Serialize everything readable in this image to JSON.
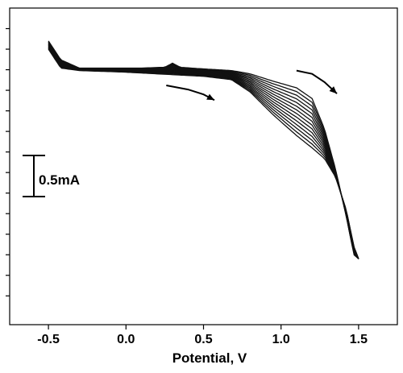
{
  "chart_data": {
    "type": "line",
    "title": "",
    "xlabel": "Potential, V",
    "ylabel": "",
    "xlim": [
      -0.75,
      1.75
    ],
    "ylim": [
      -3.1,
      0.75
    ],
    "x_ticks": [
      -0.5,
      0.0,
      0.5,
      1.0,
      1.5
    ],
    "x_tick_labels": [
      "-0.5",
      "0.0",
      "0.5",
      "1.0",
      "1.5"
    ],
    "y_ticks_mA": [
      0.5,
      0.25,
      0.0,
      -0.25,
      -0.5,
      -0.75,
      -1.0,
      -1.25,
      -1.5,
      -1.75,
      -2.0,
      -2.25,
      -2.5,
      -2.75
    ],
    "grid": false,
    "legend": "none",
    "scale_bar": {
      "label": "0.5mA",
      "value_mA": 0.5
    },
    "cycles": 14,
    "series": [
      {
        "role": "outer-envelope",
        "x": [
          -0.5,
          -0.42,
          -0.3,
          -0.1,
          0.1,
          0.25,
          0.3,
          0.35,
          0.5,
          0.68,
          0.8,
          0.95,
          1.1,
          1.2,
          1.28,
          1.35,
          1.42,
          1.47,
          1.5
        ],
        "y": [
          0.35,
          0.12,
          0.02,
          0.02,
          0.02,
          0.03,
          0.08,
          0.03,
          0.01,
          -0.01,
          -0.05,
          -0.14,
          -0.22,
          -0.35,
          -0.72,
          -1.2,
          -1.78,
          -2.25,
          -2.3
        ]
      },
      {
        "role": "inner-envelope",
        "x": [
          1.5,
          1.47,
          1.42,
          1.35,
          1.28,
          1.2,
          1.1,
          0.95,
          0.8,
          0.68,
          0.5,
          0.3,
          0.0,
          -0.3,
          -0.42,
          -0.5
        ],
        "y": [
          -2.3,
          -2.15,
          -1.7,
          -1.3,
          -1.08,
          -0.95,
          -0.8,
          -0.55,
          -0.27,
          -0.12,
          -0.08,
          -0.06,
          -0.03,
          -0.01,
          0.02,
          0.25
        ]
      }
    ],
    "annotations": [
      {
        "type": "arrow",
        "meaning": "scan direction",
        "x": [
          0.26,
          0.4,
          0.5,
          0.57
        ],
        "y": [
          -0.19,
          -0.24,
          -0.3,
          -0.37
        ]
      },
      {
        "type": "arrow",
        "meaning": "scan direction",
        "x": [
          1.1,
          1.2,
          1.28,
          1.36
        ],
        "y": [
          -0.01,
          -0.05,
          -0.15,
          -0.29
        ]
      }
    ]
  }
}
